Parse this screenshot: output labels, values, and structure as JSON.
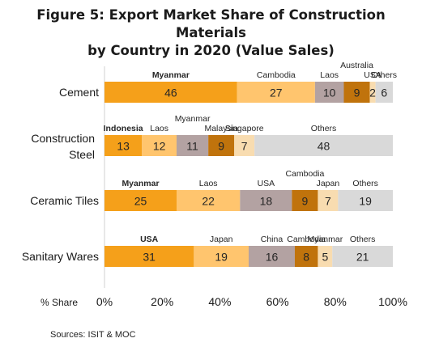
{
  "title_lines": [
    "Figure 5: Export Market Share of Construction Materials",
    "by Country in 2020 (Value Sales)"
  ],
  "source": "Sources: ISIT & MOC",
  "chart_data": {
    "type": "bar",
    "orientation": "horizontal",
    "stacked": true,
    "xlabel": "% Share",
    "xlim": [
      0,
      100
    ],
    "x_ticks": [
      "0%",
      "20%",
      "40%",
      "60%",
      "80%",
      "100%"
    ],
    "grid": false,
    "categories": [
      "Cement",
      "Construction Steel",
      "Ceramic Tiles",
      "Sanitary Wares"
    ],
    "rows": [
      {
        "category": "Cement",
        "segments": [
          {
            "country": "Myanmar",
            "value": 46,
            "color": "#f5a01a",
            "label_bold": true
          },
          {
            "country": "Cambodia",
            "value": 27,
            "color": "#ffc56e"
          },
          {
            "country": "Laos",
            "value": 10,
            "color": "#b3a2a2"
          },
          {
            "country": "Australia",
            "value": 9,
            "color": "#c0730c",
            "label_raised": true
          },
          {
            "country": "USA",
            "value": 2,
            "color": "#f8dcb0"
          },
          {
            "country": "Others",
            "value": 6,
            "color": "#d9d9d9"
          }
        ]
      },
      {
        "category": "Construction Steel",
        "segments": [
          {
            "country": "Indonesia",
            "value": 13,
            "color": "#f5a01a",
            "label_bold": true
          },
          {
            "country": "Laos",
            "value": 12,
            "color": "#ffc56e"
          },
          {
            "country": "Myanmar",
            "value": 11,
            "color": "#b3a2a2",
            "label_raised": true
          },
          {
            "country": "Malaysia",
            "value": 9,
            "color": "#c0730c"
          },
          {
            "country": "Singapore",
            "value": 7,
            "color": "#f8dcb0"
          },
          {
            "country": "Others",
            "value": 48,
            "color": "#d9d9d9"
          }
        ]
      },
      {
        "category": "Ceramic Tiles",
        "segments": [
          {
            "country": "Myanmar",
            "value": 25,
            "color": "#f5a01a",
            "label_bold": true
          },
          {
            "country": "Laos",
            "value": 22,
            "color": "#ffc56e"
          },
          {
            "country": "USA",
            "value": 18,
            "color": "#b3a2a2"
          },
          {
            "country": "Cambodia",
            "value": 9,
            "color": "#c0730c",
            "label_raised": true
          },
          {
            "country": "Japan",
            "value": 7,
            "color": "#f8dcb0"
          },
          {
            "country": "Others",
            "value": 19,
            "color": "#d9d9d9"
          }
        ]
      },
      {
        "category": "Sanitary Wares",
        "segments": [
          {
            "country": "USA",
            "value": 31,
            "color": "#f5a01a",
            "label_bold": true
          },
          {
            "country": "Japan",
            "value": 19,
            "color": "#ffc56e"
          },
          {
            "country": "China",
            "value": 16,
            "color": "#b3a2a2"
          },
          {
            "country": "Cambodia",
            "value": 8,
            "color": "#c0730c"
          },
          {
            "country": "Myanmar",
            "value": 5,
            "color": "#f8dcb0"
          },
          {
            "country": "Others",
            "value": 21,
            "color": "#d9d9d9"
          }
        ]
      }
    ]
  }
}
